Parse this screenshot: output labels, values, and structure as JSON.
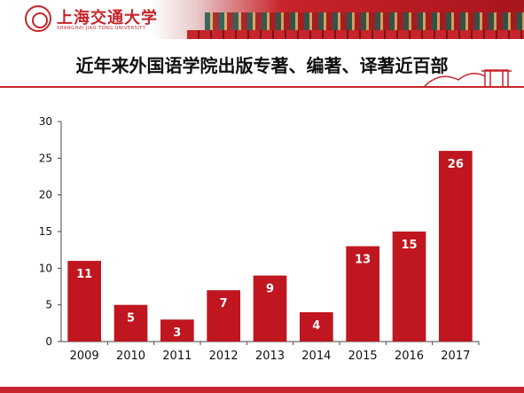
{
  "header": {
    "logo_text": "上海交通大学",
    "logo_sub": "SHANGHAI JIAO TONG UNIVERSITY"
  },
  "chart_data": {
    "type": "bar",
    "title": "近年来外国语学院出版专著、编著、译著近百部",
    "categories": [
      "2009",
      "2010",
      "2011",
      "2012",
      "2013",
      "2014",
      "2015",
      "2016",
      "2017"
    ],
    "values": [
      11,
      5,
      3,
      7,
      9,
      4,
      13,
      15,
      26
    ],
    "ylim": [
      0,
      30
    ],
    "yticks": [
      0,
      5,
      10,
      15,
      20,
      25,
      30
    ],
    "xlabel": "",
    "ylabel": "",
    "grid": false,
    "bar_color": "#c0161f",
    "accent_color": "#c7242b"
  }
}
